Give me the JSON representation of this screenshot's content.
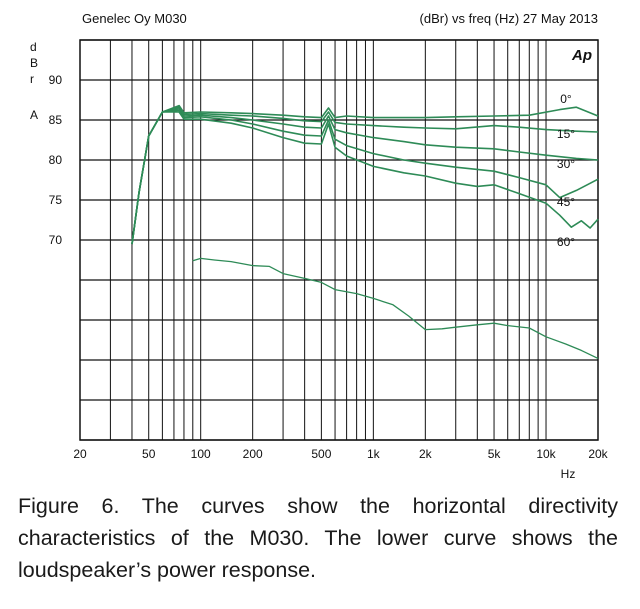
{
  "header": {
    "left_title": "Genelec Oy M030",
    "right_title": "(dBr) vs freq (Hz) 27 May 2013",
    "logo_text": "Ap"
  },
  "caption": "Figure 6. The curves show the horizontal directivity characteristics of the M030. The lower curve shows the loudspeaker’s power response.",
  "chart_data": {
    "type": "line",
    "title": "Genelec Oy M030",
    "subtitle": "(dBr) vs freq (Hz) 27 May 2013",
    "xlabel": "Hz",
    "ylabel_letters": [
      "d",
      "B",
      "r",
      "A"
    ],
    "xscale": "log",
    "xlim": [
      20,
      20000
    ],
    "ylim": [
      45,
      95
    ],
    "grid": true,
    "x_ticks": [
      {
        "value": 20,
        "label": "20"
      },
      {
        "value": 50,
        "label": "50"
      },
      {
        "value": 100,
        "label": "100"
      },
      {
        "value": 200,
        "label": "200"
      },
      {
        "value": 500,
        "label": "500"
      },
      {
        "value": 1000,
        "label": "1k"
      },
      {
        "value": 2000,
        "label": "2k"
      },
      {
        "value": 5000,
        "label": "5k"
      },
      {
        "value": 10000,
        "label": "10k"
      },
      {
        "value": 20000,
        "label": "20k"
      }
    ],
    "y_ticks": [
      {
        "value": 90,
        "label": "90"
      },
      {
        "value": 85,
        "label": "85"
      },
      {
        "value": 80,
        "label": "80"
      },
      {
        "value": 75,
        "label": "75"
      },
      {
        "value": 70,
        "label": "70"
      }
    ],
    "colors": {
      "curve": "#2e8b57",
      "grid": "#111111"
    },
    "series": [
      {
        "name": "0°",
        "label": "0°",
        "x": [
          40,
          44,
          50,
          60,
          75,
          80,
          100,
          150,
          200,
          300,
          400,
          500,
          550,
          600,
          700,
          1000,
          2000,
          3000,
          5000,
          8000,
          12000,
          15000,
          20000
        ],
        "y": [
          69.5,
          76,
          83,
          86,
          86.8,
          85.9,
          86,
          85.9,
          85.8,
          85.6,
          85.4,
          85.3,
          86.5,
          85.3,
          85.5,
          85.3,
          85.3,
          85.4,
          85.5,
          85.6,
          86.3,
          86.6,
          85.5
        ]
      },
      {
        "name": "15°",
        "label": "15°",
        "x": [
          40,
          44,
          50,
          60,
          75,
          80,
          100,
          150,
          200,
          300,
          400,
          500,
          550,
          600,
          700,
          1000,
          1500,
          2000,
          3000,
          5000,
          7000,
          10000,
          15000,
          20000
        ],
        "y": [
          69.5,
          76,
          83,
          86,
          86.6,
          85.7,
          85.8,
          85.6,
          85.5,
          85.2,
          84.9,
          84.8,
          86,
          84.7,
          84.5,
          84.3,
          84.1,
          84,
          83.9,
          84.3,
          84.1,
          83.8,
          83.6,
          83.5
        ]
      },
      {
        "name": "30°",
        "label": "30°",
        "x": [
          40,
          44,
          50,
          60,
          75,
          80,
          100,
          150,
          200,
          300,
          400,
          500,
          550,
          600,
          700,
          1000,
          1500,
          2000,
          3000,
          5000,
          7000,
          10000,
          15000,
          20000
        ],
        "y": [
          69.5,
          76,
          83,
          86,
          86.4,
          85.5,
          85.6,
          85.3,
          85,
          84.5,
          84.1,
          84,
          85.5,
          83.8,
          83.4,
          82.8,
          82.3,
          81.9,
          81.6,
          81.4,
          81,
          80.6,
          80.2,
          80
        ]
      },
      {
        "name": "45°",
        "label": "45°",
        "x": [
          40,
          44,
          50,
          60,
          75,
          80,
          100,
          150,
          200,
          300,
          400,
          500,
          550,
          600,
          700,
          1000,
          1500,
          2000,
          3000,
          5000,
          7000,
          10000,
          12000,
          15000,
          20000
        ],
        "y": [
          69.5,
          76,
          83,
          86,
          86.2,
          85.3,
          85.4,
          85,
          84.5,
          83.6,
          83.1,
          83,
          85,
          82.6,
          81.8,
          80.8,
          80,
          79.6,
          79.1,
          78.6,
          77.8,
          76.9,
          75.3,
          76.2,
          77.6
        ]
      },
      {
        "name": "60°",
        "label": "60°",
        "x": [
          40,
          44,
          50,
          60,
          75,
          80,
          100,
          150,
          200,
          300,
          400,
          500,
          550,
          600,
          700,
          1000,
          1500,
          2000,
          3000,
          4000,
          5000,
          7000,
          10000,
          12000,
          14000,
          16000,
          18000,
          20000
        ],
        "y": [
          69.5,
          76,
          83,
          86,
          86,
          85.1,
          85.1,
          84.6,
          84,
          82.8,
          82.1,
          82,
          84.5,
          81.6,
          80.5,
          79.2,
          78.4,
          78,
          77.1,
          76.7,
          76.9,
          75.8,
          74.6,
          73.1,
          71.6,
          72.4,
          71.5,
          72.6
        ]
      },
      {
        "name": "Power response",
        "x": [
          90,
          100,
          120,
          150,
          200,
          250,
          300,
          400,
          500,
          600,
          800,
          1000,
          1300,
          1600,
          2000,
          2500,
          3000,
          4000,
          5000,
          6000,
          8000,
          10000,
          13000,
          16000,
          20000
        ],
        "y": [
          67.4,
          67.7,
          67.5,
          67.3,
          66.8,
          66.7,
          65.8,
          65.2,
          64.7,
          63.8,
          63.3,
          62.7,
          61.9,
          60.5,
          58.8,
          58.9,
          59.1,
          59.4,
          59.6,
          59.3,
          59,
          57.9,
          57,
          56.2,
          55.2
        ]
      }
    ]
  }
}
